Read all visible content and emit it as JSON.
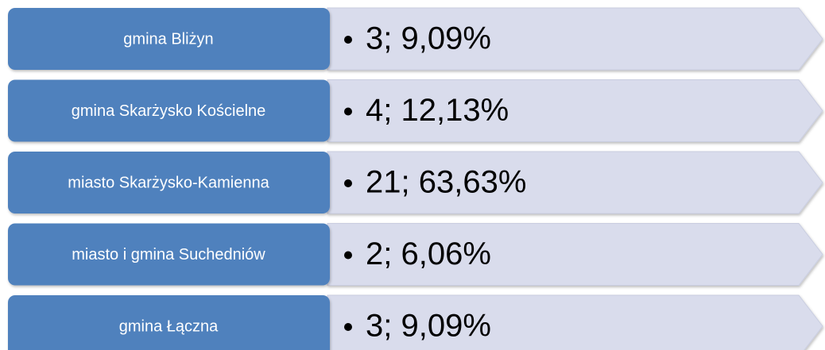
{
  "items": [
    {
      "label": "gmina Bliżyn",
      "text": "3; 9,09%"
    },
    {
      "label": "gmina Skarżysko Kościelne",
      "text": "4; 12,13%"
    },
    {
      "label": "miasto Skarżysko-Kamienna",
      "text": "21; 63,63%"
    },
    {
      "label": "miasto i gmina Suchedniów",
      "text": "2; 6,06%"
    },
    {
      "label": "gmina Łączna",
      "text": "3; 9,09%"
    }
  ]
}
